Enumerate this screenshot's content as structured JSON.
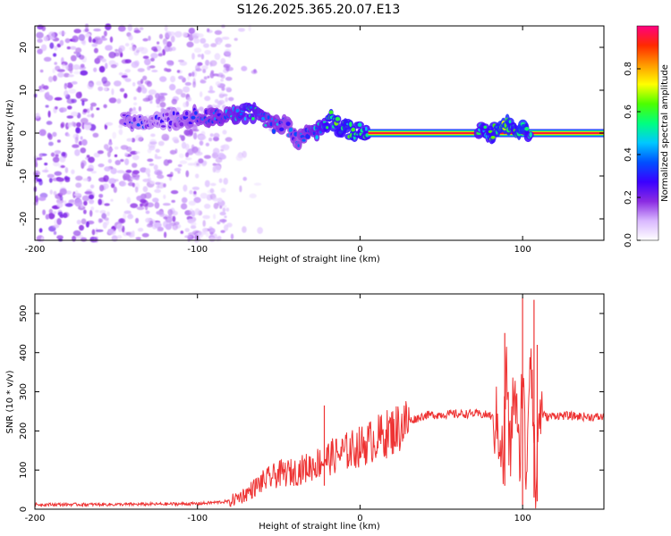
{
  "figure_title": "S126.2025.365.20.07.E13",
  "chart_data": [
    {
      "type": "heatmap",
      "name": "spectrogram",
      "title": "S126.2025.365.20.07.E13",
      "xlabel": "Height of straight line (km)",
      "ylabel": "Frequency (Hz)",
      "xlim": [
        -200,
        150
      ],
      "ylim": [
        -25,
        25
      ],
      "x_ticks": [
        -200,
        -100,
        0,
        100
      ],
      "y_ticks": [
        -20,
        -10,
        0,
        10,
        20
      ],
      "colorbar": {
        "label": "Normalized spectral amplitude",
        "range": [
          0.0,
          1.0
        ],
        "ticks": [
          0.0,
          0.2,
          0.4,
          0.6,
          0.8
        ],
        "tick_labels": [
          "0.0",
          "0.2",
          "0.4",
          "0.6",
          "0.8"
        ],
        "colors": [
          "#ffffff",
          "#d9b8ff",
          "#8a2be2",
          "#3a00ff",
          "#0050ff",
          "#00c8ff",
          "#00ff80",
          "#4cff00",
          "#ffff00",
          "#ff9900",
          "#ff2a00",
          "#ff0080"
        ]
      },
      "features": [
        {
          "kind": "noise",
          "x_range": [
            -200,
            -80
          ],
          "freq_range": [
            -25,
            25
          ],
          "amplitude": 0.1
        },
        {
          "kind": "ridge",
          "x": [
            -145,
            -120,
            -100,
            -80,
            -68,
            -55,
            -45,
            -38,
            -30,
            -22,
            -18,
            -12,
            -5,
            0,
            5
          ],
          "freq": [
            3,
            3,
            4,
            4,
            5,
            2,
            2,
            -2,
            0,
            1,
            4,
            1,
            0.5,
            0.5,
            0.5
          ],
          "amplitude": [
            0.25,
            0.2,
            0.3,
            0.35,
            0.45,
            0.35,
            0.3,
            0.3,
            0.35,
            0.45,
            0.55,
            0.5,
            0.55,
            0.5,
            0.5
          ]
        },
        {
          "kind": "band",
          "x_range": [
            5,
            150
          ],
          "freq": 0,
          "amplitude": 0.95
        },
        {
          "kind": "ridge",
          "x": [
            73,
            80,
            85,
            90,
            95,
            100,
            105
          ],
          "freq": [
            1,
            0,
            1,
            2,
            0,
            2,
            0
          ],
          "amplitude": [
            0.45,
            0.5,
            0.55,
            0.6,
            0.5,
            0.6,
            0.45
          ]
        }
      ]
    },
    {
      "type": "line",
      "name": "snr",
      "xlabel": "Height of straight line (km)",
      "ylabel": "SNR (10 * v/v)",
      "xlim": [
        -200,
        150
      ],
      "ylim": [
        0,
        550
      ],
      "x_ticks": [
        -200,
        -100,
        0,
        100
      ],
      "y_ticks": [
        0,
        100,
        200,
        300,
        400,
        500
      ],
      "color": "#ee3333",
      "series": [
        {
          "name": "SNR",
          "x": [
            -200,
            -150,
            -100,
            -80,
            -70,
            -60,
            -50,
            -40,
            -30,
            -20,
            -10,
            0,
            10,
            20,
            30,
            40,
            50,
            60,
            70,
            80,
            83,
            86,
            88,
            90,
            92,
            95,
            98,
            100,
            102,
            105,
            108,
            110,
            115,
            120,
            130,
            140,
            150
          ],
          "y": [
            12,
            12,
            14,
            20,
            40,
            70,
            90,
            95,
            110,
            130,
            145,
            160,
            180,
            200,
            225,
            240,
            242,
            243,
            244,
            240,
            225,
            200,
            110,
            380,
            120,
            330,
            100,
            390,
            70,
            460,
            20,
            250,
            235,
            240,
            238,
            236,
            235
          ],
          "spikes": [
            {
              "x": -22,
              "low": 60,
              "high": 265
            },
            {
              "x": 89,
              "low": 60,
              "high": 450
            },
            {
              "x": 100,
              "low": 10,
              "high": 540
            },
            {
              "x": 107,
              "low": 30,
              "high": 535
            },
            {
              "x": 109,
              "low": 20,
              "high": 420
            }
          ]
        }
      ]
    }
  ]
}
